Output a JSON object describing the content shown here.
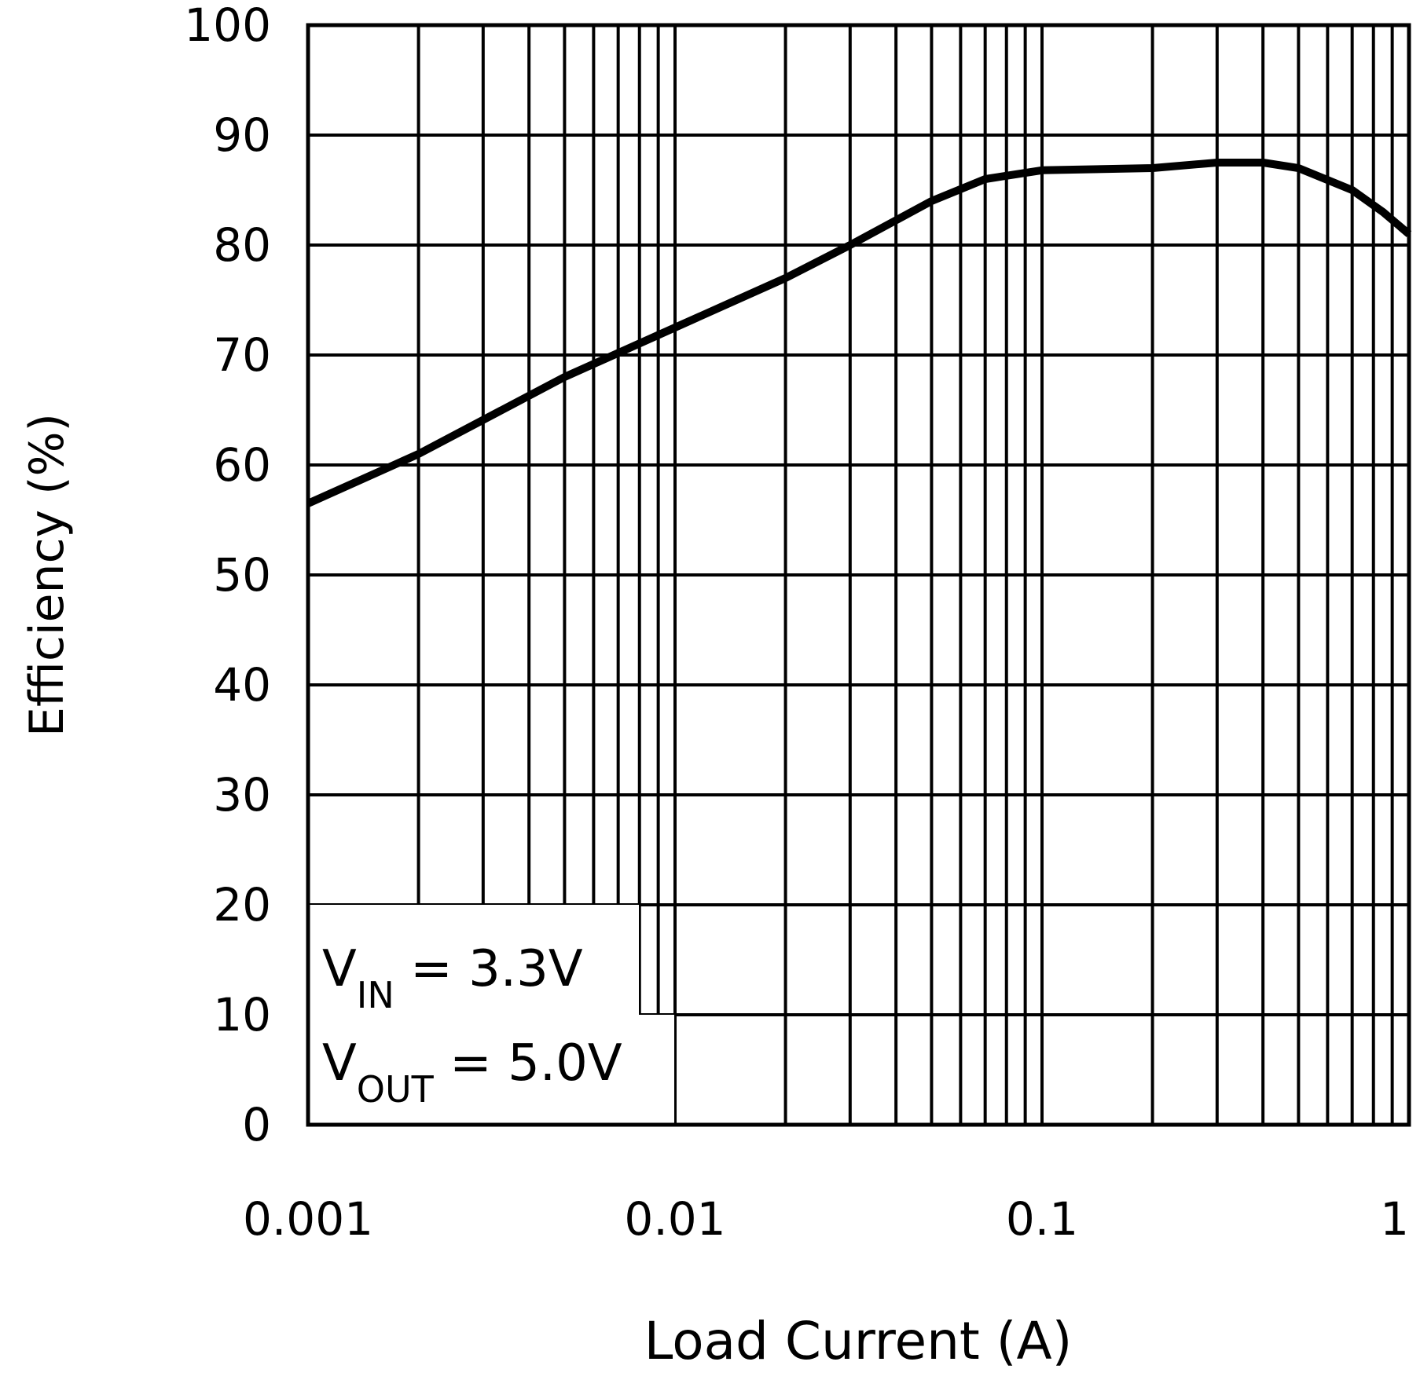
{
  "chart_data": {
    "type": "line",
    "title": "",
    "xlabel": "Load Current (A)",
    "ylabel": "Efficiency (%)",
    "xscale": "log",
    "xlim": [
      0.001,
      1
    ],
    "ylim": [
      0,
      100
    ],
    "grid": true,
    "x_ticks": [
      0.001,
      0.01,
      0.1,
      1
    ],
    "x_tick_labels": [
      "0.001",
      "0.01",
      "0.1",
      "1"
    ],
    "y_ticks": [
      0,
      10,
      20,
      30,
      40,
      50,
      60,
      70,
      80,
      90,
      100
    ],
    "y_tick_labels": [
      "0",
      "10",
      "20",
      "30",
      "40",
      "50",
      "60",
      "70",
      "80",
      "90",
      "100"
    ],
    "annotations": [
      {
        "main": "V",
        "sub": "IN",
        "rest": " = 3.3V"
      },
      {
        "main": "V",
        "sub": "OUT",
        "rest": " = 5.0V"
      }
    ],
    "series": [
      {
        "name": "Efficiency",
        "color": "#000000",
        "x": [
          0.001,
          0.002,
          0.005,
          0.01,
          0.02,
          0.03,
          0.05,
          0.07,
          0.1,
          0.2,
          0.3,
          0.4,
          0.5,
          0.7,
          0.85,
          1.0
        ],
        "y": [
          56.5,
          61,
          68,
          72.5,
          77,
          80,
          84,
          86,
          86.8,
          87,
          87.5,
          87.5,
          87,
          85,
          83,
          81
        ]
      }
    ]
  }
}
